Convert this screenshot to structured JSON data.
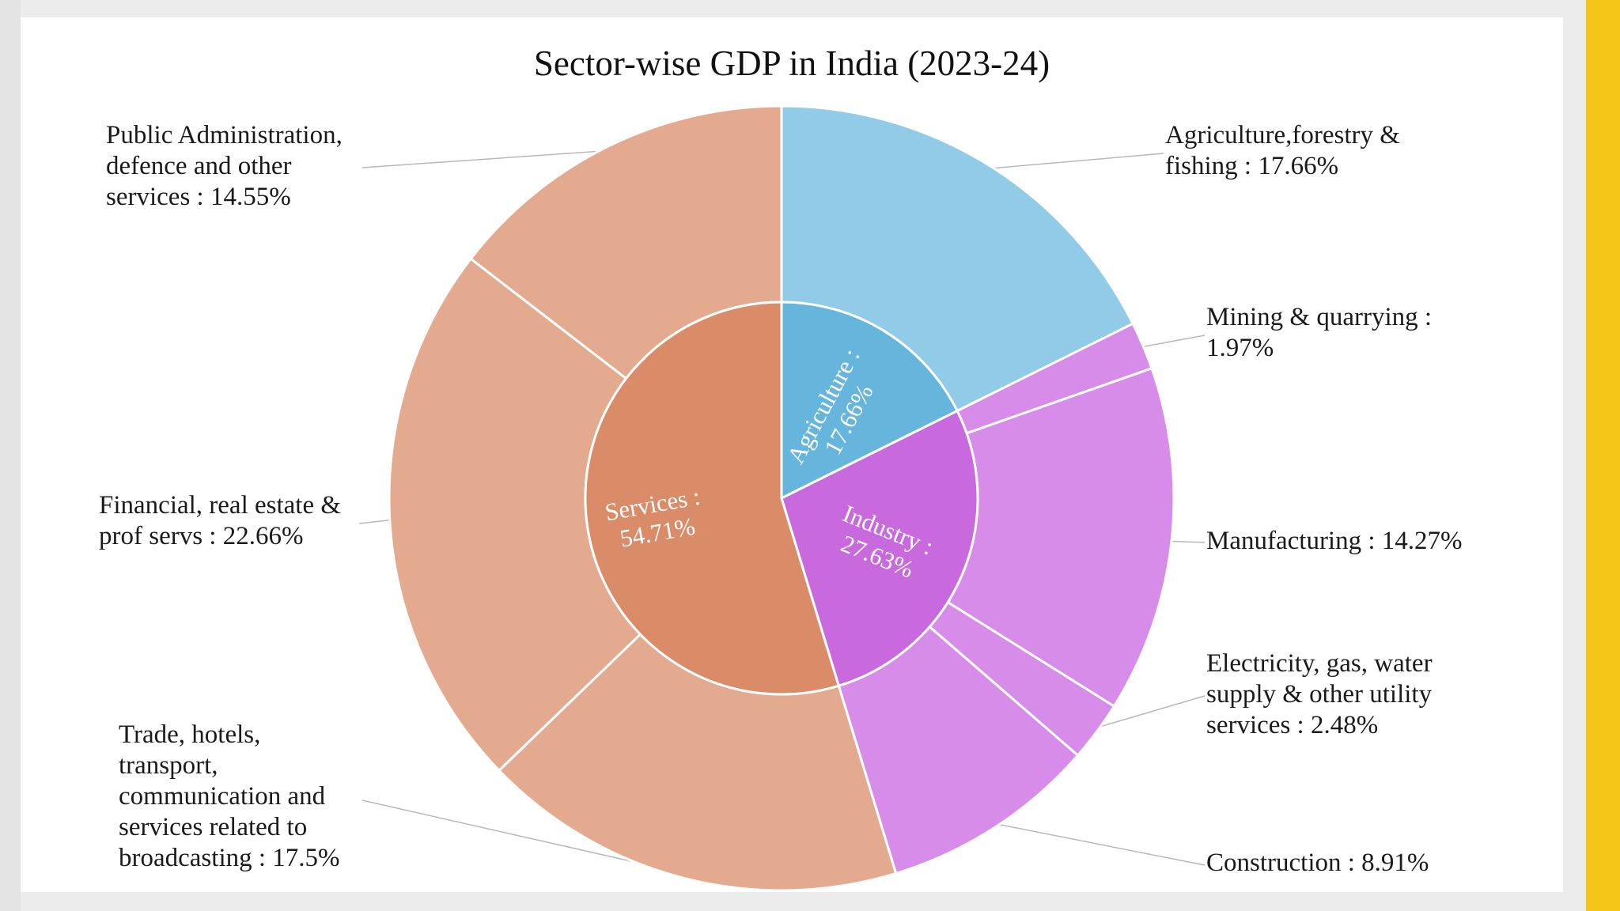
{
  "chart_data": {
    "type": "sunburst",
    "title": "Sector-wise GDP in India (2023-24)",
    "inner": [
      {
        "name": "Agriculture",
        "label": "Agriculture : 17.66%",
        "value": 17.66,
        "color": "#66b5dc"
      },
      {
        "name": "Industry",
        "label": "Industry : 27.63%",
        "value": 27.63,
        "color": "#c86add"
      },
      {
        "name": "Services",
        "label": "Services : 54.71%",
        "value": 54.71,
        "color": "#da8b67"
      }
    ],
    "outer": [
      {
        "name": "Agriculture,forestry & fishing",
        "label": "Agriculture,forestry &\nfishing : 17.66%",
        "value": 17.66,
        "parent": "Agriculture",
        "color": "#92cbe7"
      },
      {
        "name": "Mining & quarrying",
        "label": "Mining & quarrying :\n1.97%",
        "value": 1.97,
        "parent": "Industry",
        "color": "#d68ce8"
      },
      {
        "name": "Manufacturing",
        "label": "Manufacturing : 14.27%",
        "value": 14.27,
        "parent": "Industry",
        "color": "#d68ce8"
      },
      {
        "name": "Electricity, gas, water supply & other utility services",
        "label": "Electricity, gas, water\nsupply & other utility\nservices : 2.48%",
        "value": 2.48,
        "parent": "Industry",
        "color": "#d68ce8"
      },
      {
        "name": "Construction",
        "label": "Construction : 8.91%",
        "value": 8.91,
        "parent": "Industry",
        "color": "#d68ce8"
      },
      {
        "name": "Trade, hotels, transport, communication and services related to broadcasting",
        "label": "Trade, hotels,\ntransport,\ncommunication and\nservices related to\nbroadcasting : 17.5%",
        "value": 17.5,
        "parent": "Services",
        "color": "#e4aa8f"
      },
      {
        "name": "Financial, real estate & prof servs",
        "label": "Financial, real estate &\nprof servs : 22.66%",
        "value": 22.66,
        "parent": "Services",
        "color": "#e4aa8f"
      },
      {
        "name": "Public Administration, defence and other services",
        "label": "Public Administration,\ndefence and other\nservices : 14.55%",
        "value": 14.55,
        "parent": "Services",
        "color": "#e4aa8f"
      }
    ]
  },
  "theme": {
    "accent_bar_color": "#f5c518",
    "page_background": "#ececec",
    "card_background": "#ffffff",
    "leader_line_color": "#b8b8b8",
    "separator_color": "#ffffff"
  }
}
